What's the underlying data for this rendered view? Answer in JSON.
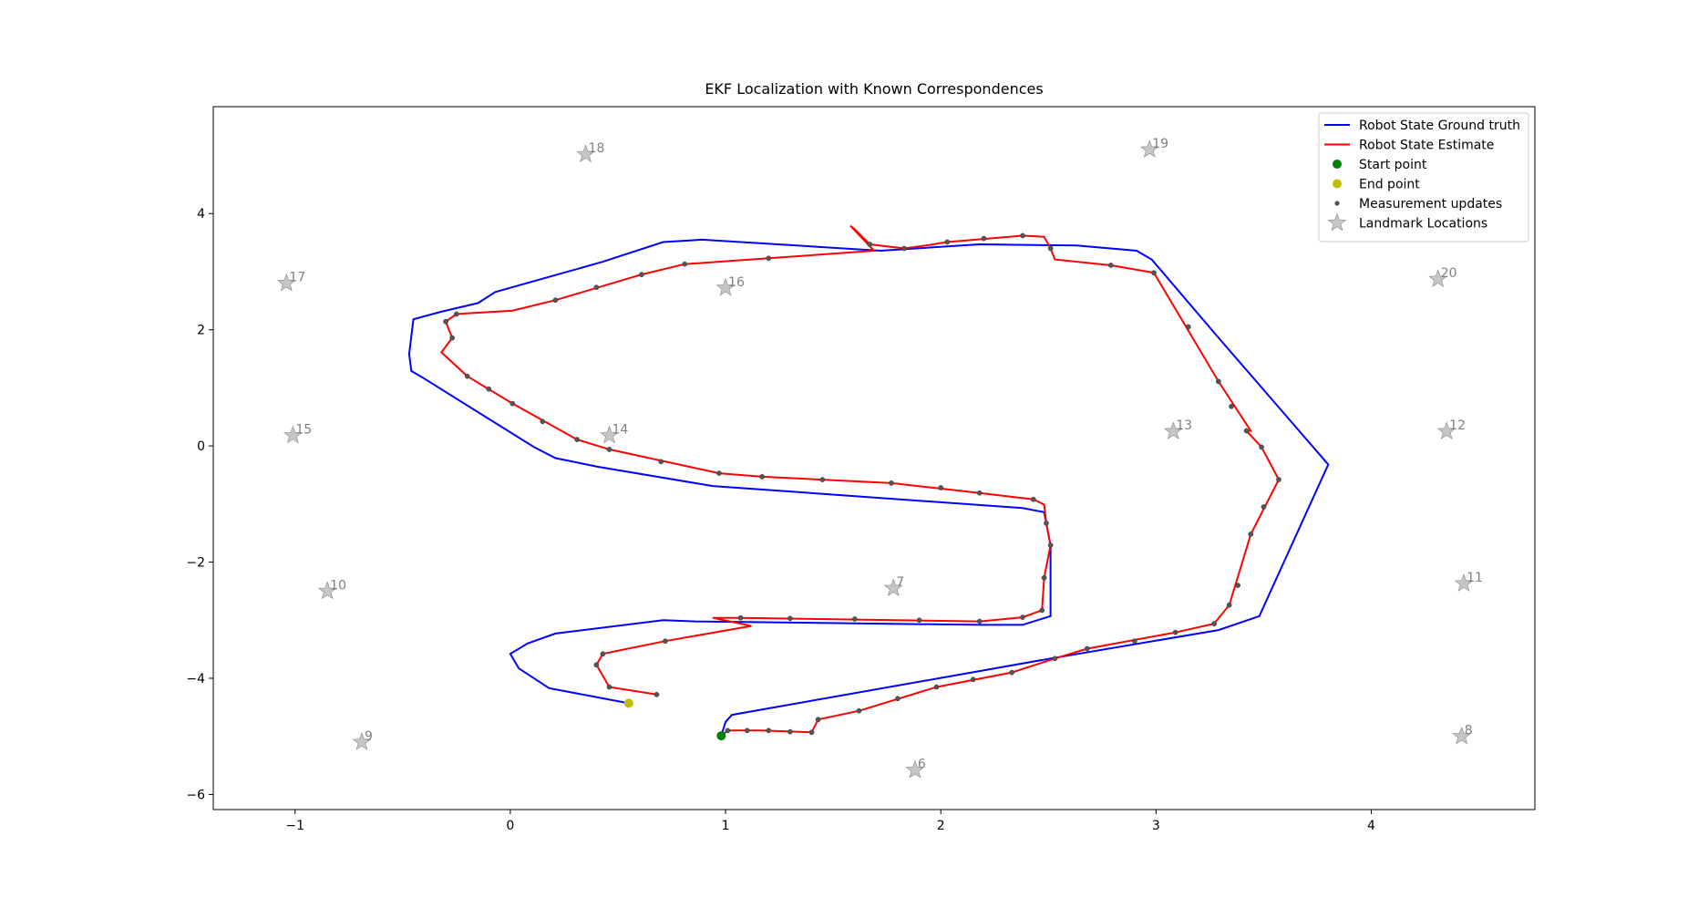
{
  "chart_data": {
    "type": "trajectory",
    "title": "EKF Localization with Known Correspondences",
    "xlim": [
      -1.38,
      4.76
    ],
    "ylim": [
      -6.26,
      5.84
    ],
    "xticks": [
      {
        "value": -1,
        "label": "−1"
      },
      0,
      1,
      2,
      3,
      4
    ],
    "yticks": [
      {
        "value": -6,
        "label": "−6"
      },
      {
        "value": -4,
        "label": "−4"
      },
      {
        "value": -2,
        "label": "−2"
      },
      0,
      2,
      4
    ],
    "legend": "upper right",
    "series": [
      {
        "name": "Robot State Ground truth",
        "kind": "line",
        "color": "#0000ff",
        "x": [
          0.98,
          1.0,
          1.03,
          2.51,
          3.29,
          3.48,
          3.8,
          3.27,
          2.98,
          2.91,
          2.63,
          2.18,
          1.72,
          0.89,
          0.71,
          0.43,
          -0.07,
          -0.15,
          -0.32,
          -0.45,
          -0.47,
          -0.46,
          -0.4,
          0.11,
          0.21,
          0.41,
          0.94,
          2.38,
          2.48,
          2.51,
          2.51,
          2.38,
          2.18,
          0.86,
          0.71,
          0.21,
          0.08,
          0.0,
          0.04,
          0.18,
          0.55
        ],
        "y": [
          -4.99,
          -4.75,
          -4.63,
          -3.66,
          -3.17,
          -2.93,
          -0.32,
          1.95,
          3.21,
          3.36,
          3.45,
          3.47,
          3.36,
          3.55,
          3.51,
          3.17,
          2.65,
          2.46,
          2.31,
          2.18,
          1.58,
          1.29,
          1.16,
          -0.02,
          -0.21,
          -0.36,
          -0.69,
          -1.07,
          -1.14,
          -1.71,
          -2.93,
          -3.08,
          -3.08,
          -3.02,
          -3.0,
          -3.23,
          -3.4,
          -3.58,
          -3.83,
          -4.17,
          -4.43
        ]
      },
      {
        "name": "Robot State Estimate",
        "kind": "line",
        "color": "#ff0000",
        "x": [
          0.98,
          1.01,
          1.17,
          1.4,
          1.43,
          1.62,
          1.98,
          2.33,
          2.53,
          2.68,
          3.09,
          3.27,
          3.34,
          3.44,
          3.57,
          3.49,
          3.42,
          3.44,
          3.29,
          2.99,
          2.79,
          2.53,
          2.51,
          2.48,
          2.38,
          2.03,
          1.93,
          1.83,
          1.67,
          1.6,
          1.58,
          1.69,
          1.2,
          0.81,
          0.61,
          0.21,
          0.01,
          -0.25,
          -0.3,
          -0.27,
          -0.32,
          -0.2,
          0.01,
          0.31,
          0.46,
          0.97,
          1.17,
          1.77,
          2.18,
          2.43,
          2.48,
          2.49,
          2.51,
          2.48,
          2.47,
          2.38,
          2.18,
          1.07,
          0.94,
          1.12,
          0.72,
          0.43,
          0.4,
          0.46,
          0.68
        ],
        "y": [
          -4.99,
          -4.9,
          -4.9,
          -4.93,
          -4.71,
          -4.56,
          -4.15,
          -3.9,
          -3.66,
          -3.49,
          -3.21,
          -3.06,
          -2.74,
          -1.52,
          -0.58,
          -0.02,
          0.26,
          0.26,
          1.11,
          2.98,
          3.11,
          3.21,
          3.4,
          3.6,
          3.62,
          3.51,
          3.45,
          3.4,
          3.47,
          3.73,
          3.79,
          3.36,
          3.23,
          3.13,
          2.95,
          2.51,
          2.33,
          2.27,
          2.14,
          1.86,
          1.61,
          1.2,
          0.73,
          0.11,
          -0.06,
          -0.47,
          -0.53,
          -0.64,
          -0.81,
          -0.92,
          -1.01,
          -1.33,
          -1.71,
          -2.27,
          -2.83,
          -2.95,
          -3.02,
          -2.96,
          -2.96,
          -3.1,
          -3.36,
          -3.58,
          -3.77,
          -4.15,
          -4.28
        ]
      },
      {
        "name": "Start point",
        "kind": "dot",
        "color": "#008000",
        "x": [
          0.98
        ],
        "y": [
          -4.99
        ]
      },
      {
        "name": "End point",
        "kind": "dot",
        "color": "#bfbf00",
        "x": [
          0.55
        ],
        "y": [
          -4.43
        ]
      },
      {
        "name": "Measurement updates",
        "kind": "small",
        "color": "#555555",
        "x": [
          1.01,
          1.1,
          1.2,
          1.3,
          1.4,
          1.43,
          1.62,
          1.8,
          1.98,
          2.15,
          2.33,
          2.53,
          2.68,
          2.9,
          3.09,
          3.27,
          3.34,
          3.38,
          3.44,
          3.5,
          3.57,
          3.49,
          3.42,
          3.35,
          3.29,
          3.15,
          2.99,
          2.79,
          2.51,
          2.38,
          2.2,
          2.03,
          1.83,
          1.67,
          1.2,
          0.81,
          0.61,
          0.4,
          0.21,
          -0.25,
          -0.3,
          -0.27,
          -0.2,
          -0.1,
          0.01,
          0.15,
          0.31,
          0.46,
          0.7,
          0.97,
          1.17,
          1.45,
          1.77,
          2.0,
          2.18,
          2.43,
          2.49,
          2.51,
          2.48,
          2.47,
          2.38,
          2.18,
          1.9,
          1.6,
          1.3,
          1.07,
          0.72,
          0.43,
          0.4,
          0.46,
          0.68
        ],
        "y": [
          -4.9,
          -4.9,
          -4.9,
          -4.92,
          -4.93,
          -4.71,
          -4.56,
          -4.35,
          -4.15,
          -4.02,
          -3.9,
          -3.66,
          -3.49,
          -3.36,
          -3.21,
          -3.06,
          -2.74,
          -2.4,
          -1.52,
          -1.05,
          -0.58,
          -0.02,
          0.26,
          0.68,
          1.11,
          2.05,
          2.98,
          3.11,
          3.4,
          3.62,
          3.57,
          3.51,
          3.4,
          3.47,
          3.23,
          3.13,
          2.95,
          2.73,
          2.51,
          2.27,
          2.14,
          1.86,
          1.2,
          0.98,
          0.73,
          0.42,
          0.11,
          -0.06,
          -0.27,
          -0.47,
          -0.53,
          -0.58,
          -0.64,
          -0.72,
          -0.81,
          -0.92,
          -1.33,
          -1.71,
          -2.27,
          -2.83,
          -2.95,
          -3.02,
          -3.0,
          -2.98,
          -2.97,
          -2.96,
          -3.36,
          -3.58,
          -3.77,
          -4.15,
          -4.28
        ]
      },
      {
        "name": "Landmark Locations",
        "kind": "star",
        "color": "#a0a0a0",
        "labels": [
          "6",
          "7",
          "8",
          "9",
          "10",
          "11",
          "12",
          "13",
          "14",
          "15",
          "16",
          "17",
          "18",
          "19",
          "20"
        ],
        "x": [
          1.88,
          1.78,
          4.42,
          -0.69,
          -0.85,
          4.43,
          4.35,
          3.08,
          0.46,
          -1.01,
          1.0,
          -1.04,
          0.35,
          2.97,
          4.31
        ],
        "y": [
          -5.58,
          -2.45,
          -5.0,
          -5.1,
          -2.5,
          -2.37,
          0.25,
          0.25,
          0.18,
          0.18,
          2.72,
          2.8,
          5.02,
          5.1,
          2.87
        ]
      }
    ]
  }
}
